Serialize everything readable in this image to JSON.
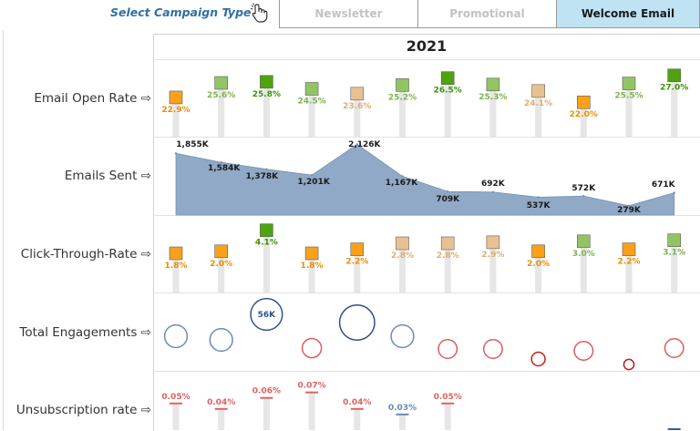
{
  "filter": {
    "label": "Select Campaign Type",
    "pointer_icon": "hand-pointer-icon",
    "options": [
      {
        "label": "Newsletter",
        "selected": false
      },
      {
        "label": "Promotional",
        "selected": false
      },
      {
        "label": "Welcome Email",
        "selected": true
      }
    ]
  },
  "year": "2021",
  "row_labels": {
    "open_rate": "Email Open Rate",
    "emails_sent": "Emails Sent",
    "ctr": "Click-Through-Rate",
    "engagements": "Total Engagements",
    "unsub": "Unsubscription rate"
  },
  "row_label_icon": "arrow-right-icon",
  "colors": {
    "dark_green": "#4ea30f",
    "light_green": "#92c464",
    "peach": "#e8c191",
    "orange": "#f9a11b",
    "area_fill": "#8fa9c6",
    "blue_circle": "#6a8ac0",
    "red_circle": "#e05a5a",
    "dark_red_circle": "#c41e1e",
    "lollipop_bar": "#e6e6e6"
  },
  "chart_data": [
    {
      "type": "scatter",
      "title": "Email Open Rate",
      "values": [
        22.9,
        25.6,
        25.8,
        24.5,
        23.6,
        25.2,
        26.5,
        25.3,
        24.1,
        22.0,
        25.5,
        27.0
      ],
      "labels": [
        "22.9%",
        "25.6%",
        "25.8%",
        "24.5%",
        "23.6%",
        "25.2%",
        "26.5%",
        "25.3%",
        "24.1%",
        "22.0%",
        "25.5%",
        "27.0%"
      ],
      "color_class": [
        "orange",
        "light_green",
        "dark_green",
        "light_green",
        "peach",
        "light_green",
        "dark_green",
        "light_green",
        "peach",
        "orange",
        "light_green",
        "dark_green"
      ]
    },
    {
      "type": "area",
      "title": "Emails Sent",
      "values": [
        1855,
        1584,
        1378,
        1201,
        2126,
        1167,
        709,
        692,
        537,
        572,
        279,
        671
      ],
      "labels": [
        "1,855K",
        "1,584K",
        "1,378K",
        "1,201K",
        "2,126K",
        "1,167K",
        "709K",
        "692K",
        "537K",
        "572K",
        "279K",
        "671K"
      ]
    },
    {
      "type": "scatter",
      "title": "Click-Through-Rate",
      "values": [
        1.8,
        2.0,
        4.1,
        1.8,
        2.2,
        2.8,
        2.8,
        2.9,
        2.0,
        3.0,
        2.2,
        3.1
      ],
      "labels": [
        "1.8%",
        "2.0%",
        "4.1%",
        "1.8%",
        "2.2%",
        "2.8%",
        "2.8%",
        "2.9%",
        "2.0%",
        "3.0%",
        "2.2%",
        "3.1%"
      ],
      "color_class": [
        "orange",
        "orange",
        "dark_green",
        "orange",
        "orange",
        "peach",
        "peach",
        "peach",
        "orange",
        "light_green",
        "orange",
        "light_green"
      ]
    },
    {
      "type": "scatter",
      "title": "Total Engagements",
      "values": [
        40,
        40,
        56,
        34,
        62,
        40,
        33,
        33,
        24,
        33,
        18,
        33
      ],
      "labels": [
        "",
        "",
        "56K",
        "",
        "",
        "",
        "",
        "",
        "",
        "",
        "",
        ""
      ],
      "color_class": [
        "blue_circle",
        "blue_circle",
        "blue_circle_dark",
        "red_circle",
        "blue_circle_dark",
        "blue_circle",
        "red_circle",
        "red_circle",
        "dark_red_circle",
        "red_circle",
        "dark_red_circle",
        "red_circle"
      ]
    },
    {
      "type": "scatter",
      "title": "Unsubscription rate",
      "values": [
        0.05,
        0.04,
        0.06,
        0.07,
        0.04,
        0.03,
        0.05,
        null,
        null,
        null,
        null,
        null
      ],
      "labels": [
        "0.05%",
        "0.04%",
        "0.06%",
        "0.07%",
        "0.04%",
        "0.03%",
        "0.05%",
        "",
        "",
        "",
        "",
        ""
      ]
    }
  ]
}
